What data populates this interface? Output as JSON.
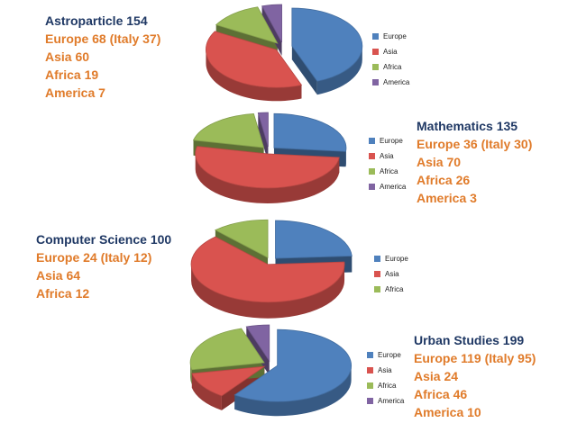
{
  "colors": {
    "Europe": "#4f81bd",
    "Asia": "#d9534f",
    "Africa": "#9bbb59",
    "America": "#8064a2",
    "title_color": "#1f3864",
    "detail_color": "#e07b2a"
  },
  "chart_data": [
    {
      "type": "pie",
      "title": "Astroparticle 154",
      "lines": [
        "Europe 68 (Italy 37)",
        "Asia 60",
        "Africa 19",
        "America 7"
      ],
      "categories": [
        "Europe",
        "Asia",
        "Africa",
        "America"
      ],
      "values": [
        68,
        60,
        19,
        7
      ],
      "legend": [
        "Europe",
        "Asia",
        "Africa",
        "America"
      ]
    },
    {
      "type": "pie",
      "title": "Mathematics 135",
      "lines": [
        "Europe 36 (Italy 30)",
        "Asia 70",
        "Africa 26",
        "America 3"
      ],
      "categories": [
        "Europe",
        "Asia",
        "Africa",
        "America"
      ],
      "values": [
        36,
        70,
        26,
        3
      ],
      "legend": [
        "Europe",
        "Asia",
        "Africa",
        "America"
      ]
    },
    {
      "type": "pie",
      "title": "Computer Science 100",
      "lines": [
        "Europe 24 (Italy 12)",
        "Asia 64",
        "Africa 12"
      ],
      "categories": [
        "Europe",
        "Asia",
        "Africa"
      ],
      "values": [
        24,
        64,
        12
      ],
      "legend": [
        "Europe",
        "Asia",
        "Africa"
      ]
    },
    {
      "type": "pie",
      "title": "Urban Studies 199",
      "lines": [
        "Europe 119 (Italy 95)",
        "Asia 24",
        "Africa 46",
        "America 10"
      ],
      "categories": [
        "Europe",
        "Asia",
        "Africa",
        "America"
      ],
      "values": [
        119,
        24,
        46,
        10
      ],
      "legend": [
        "Europe",
        "Asia",
        "Africa",
        "America"
      ]
    }
  ]
}
